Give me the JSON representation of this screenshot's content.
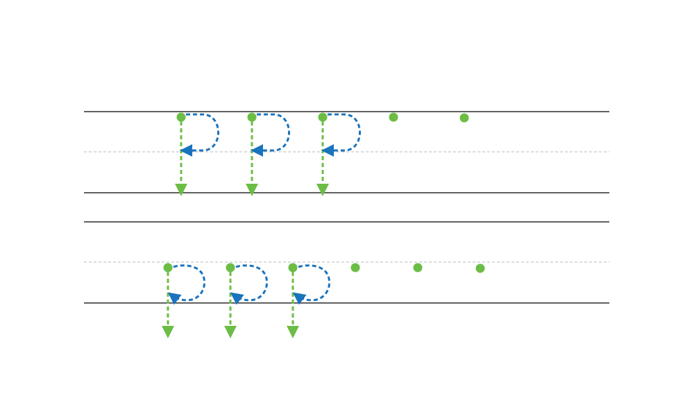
{
  "worksheet": {
    "type": "letter-tracing",
    "colors": {
      "background": "#ffffff",
      "guide_line": "#2b2b2b",
      "midline": "#b8b8b8",
      "start_dot": "#6cbd45",
      "down_stroke": "#6cbd45",
      "bowl_stroke": "#1a73bd"
    },
    "rows": [
      {
        "letter": "P",
        "case": "uppercase",
        "traced_letters": 3,
        "start_dots": 5
      },
      {
        "letter": "p",
        "case": "lowercase",
        "traced_letters": 3,
        "start_dots": 6
      }
    ]
  }
}
